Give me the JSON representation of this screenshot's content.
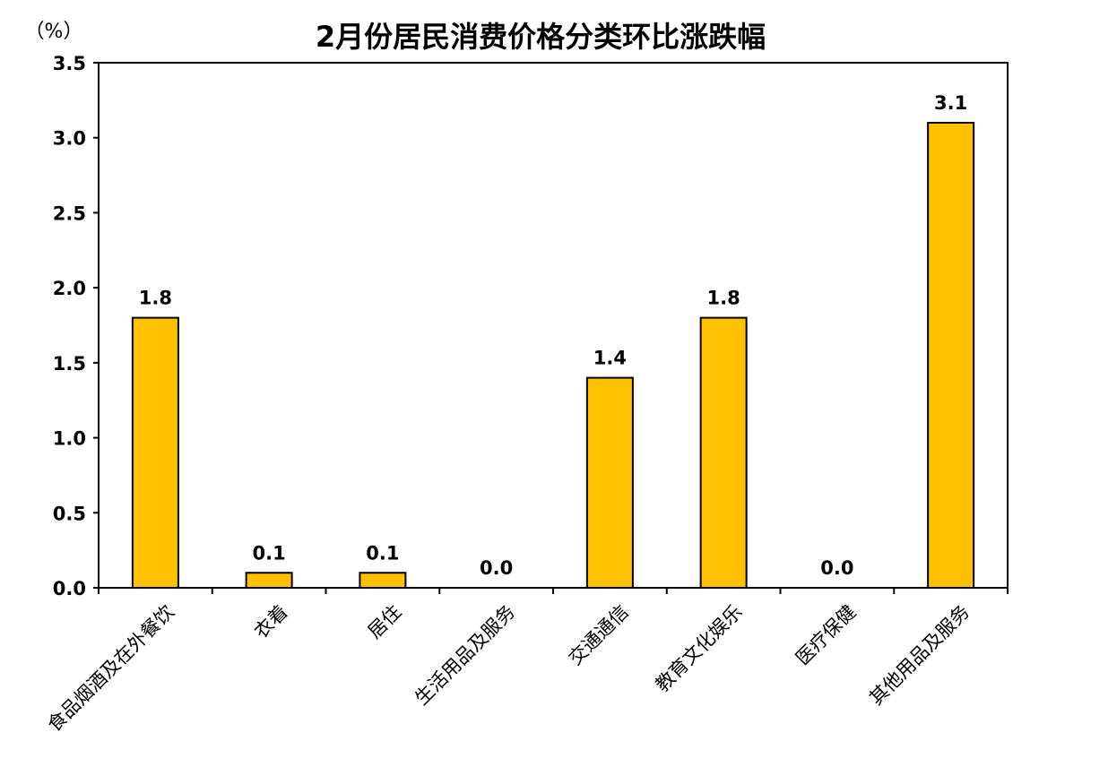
{
  "chart_data": {
    "type": "bar",
    "title": "2月份居民消费价格分类环比涨跌幅",
    "ylabel": "（%）",
    "xlabel": "",
    "categories": [
      "食品烟酒及在外餐饮",
      "衣着",
      "居住",
      "生活用品及服务",
      "交通通信",
      "教育文化娱乐",
      "医疗保健",
      "其他用品及服务"
    ],
    "values": [
      1.8,
      0.1,
      0.1,
      0.0,
      1.4,
      1.8,
      0.0,
      3.1
    ],
    "data_labels": [
      "1.8",
      "0.1",
      "0.1",
      "0.0",
      "1.4",
      "1.8",
      "0.0",
      "3.1"
    ],
    "ylim": [
      0,
      3.5
    ],
    "yticks": [
      "0.0",
      "0.5",
      "1.0",
      "1.5",
      "2.0",
      "2.5",
      "3.0",
      "3.5"
    ],
    "grid": false,
    "legend": "none",
    "colors": {
      "bar": "#FFC000",
      "bar_border": "#000000"
    }
  }
}
